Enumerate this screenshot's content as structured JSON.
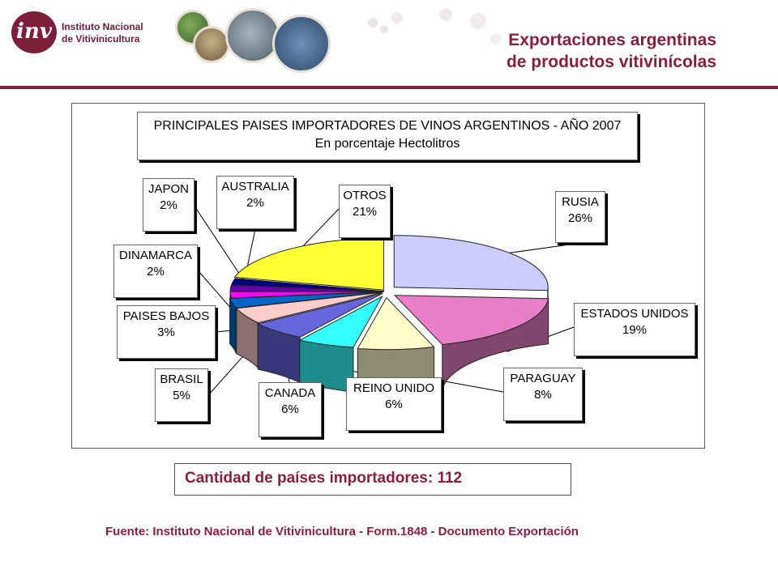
{
  "header": {
    "logo_text_line1": "Instituto Nacional",
    "logo_text_line2": "de Vitivinicultura",
    "logo_mark": "inv",
    "title_line1": "Exportaciones argentinas",
    "title_line2": "de productos vitivinícolas",
    "accent_color": "#7d1e3b"
  },
  "chart_data": {
    "type": "pie",
    "title": "PRINCIPALES PAISES IMPORTADORES DE VINOS ARGENTINOS - AÑO 2007",
    "subtitle": "En porcentaje Hectolitros",
    "slices": [
      {
        "label": "RUSIA",
        "value": 26,
        "display": "26%",
        "color": "#ccccff"
      },
      {
        "label": "ESTADOS UNIDOS",
        "value": 19,
        "display": "19%",
        "color": "#e87fc8"
      },
      {
        "label": "PARAGUAY",
        "value": 8,
        "display": "8%",
        "color": "#ffffcc"
      },
      {
        "label": "REINO UNIDO",
        "value": 6,
        "display": "6%",
        "color": "#33ffff"
      },
      {
        "label": "CANADA",
        "value": 6,
        "display": "6%",
        "color": "#6666dd"
      },
      {
        "label": "BRASIL",
        "value": 5,
        "display": "5%",
        "color": "#ffcccc"
      },
      {
        "label": "PAISES BAJOS",
        "value": 3,
        "display": "3%",
        "color": "#0066cc"
      },
      {
        "label": "DINAMARCA",
        "value": 2,
        "display": "2%",
        "color": "#ff00ff"
      },
      {
        "label": "AUSTRALIA",
        "value": 2,
        "display": "2%",
        "color": "#6600aa"
      },
      {
        "label": "JAPON",
        "value": 2,
        "display": "2%",
        "color": "#000080"
      },
      {
        "label": "OTROS",
        "value": 21,
        "display": "21%",
        "color": "#ffff33"
      }
    ]
  },
  "summary": {
    "text": "Cantidad de países importadores: 112"
  },
  "footer": {
    "source": "Fuente:  Instituto Nacional de Vitivinicultura - Form.1848 - Documento Exportación"
  }
}
